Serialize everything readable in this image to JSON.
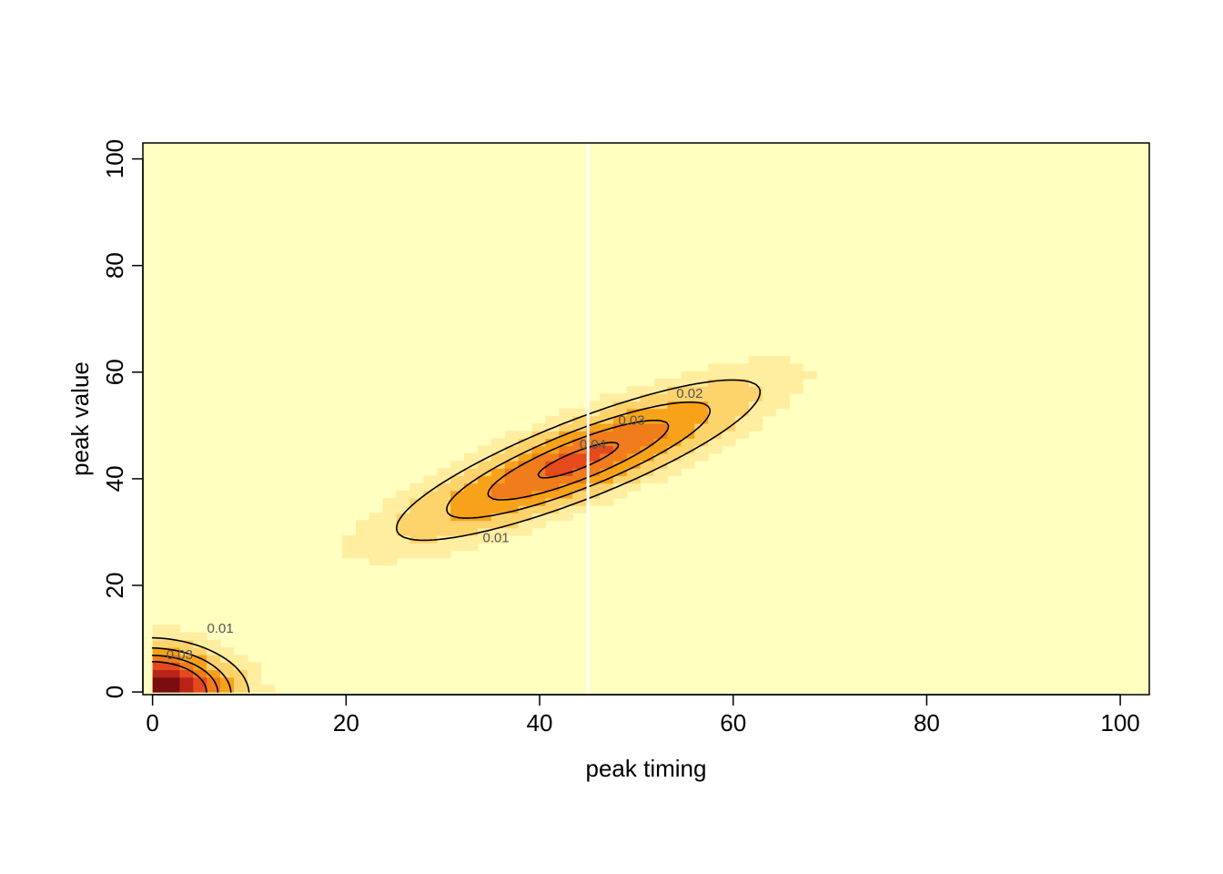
{
  "chart_data": {
    "type": "heatmap",
    "title": "",
    "xlabel": "peak timing",
    "ylabel": "peak value",
    "xlim": [
      -1,
      103
    ],
    "ylim": [
      -0.5,
      103
    ],
    "x_ticks": [
      "0",
      "20",
      "40",
      "60",
      "80",
      "100"
    ],
    "y_ticks": [
      "0",
      "20",
      "40",
      "60",
      "80",
      "100"
    ],
    "grid": false,
    "legend": "none",
    "colors": {
      "background": "#FFFFBF",
      "low": "#FFEDA0",
      "mid": "#F8A21A",
      "high": "#E5491C",
      "peak": "#7A0D0D",
      "contour": "#000000",
      "vline": "#FFFFFF"
    },
    "density_components": [
      {
        "mx": 0.5,
        "my": 0.5,
        "sx": 4.8,
        "sy": 4.9,
        "rho": -0.1,
        "peak": 0.07
      },
      {
        "mx": 44.0,
        "my": 43.5,
        "sx": 11.0,
        "sy": 8.8,
        "rho": 0.85,
        "peak": 0.043
      }
    ],
    "contour_levels": [
      "0.01",
      "0.02",
      "0.03",
      "0.04"
    ],
    "vertical_line_x": 45
  }
}
